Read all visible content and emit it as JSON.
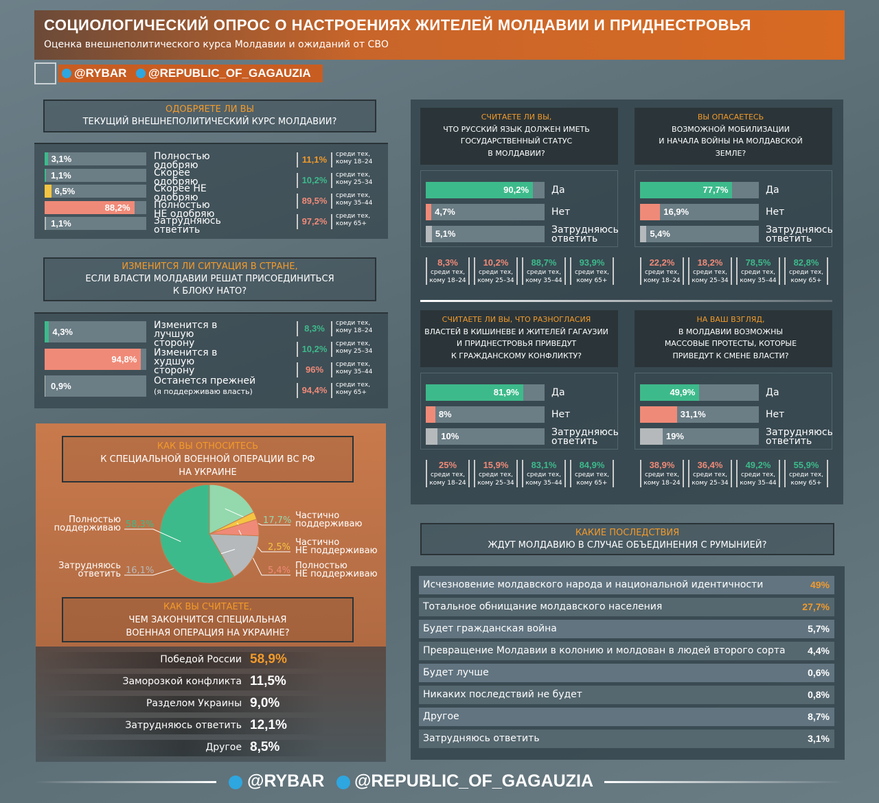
{
  "header": {
    "title": "СОЦИОЛОГИЧЕСКИЙ ОПРОС О НАСТРОЕНИЯХ ЖИТЕЛЕЙ МОЛДАВИИ И ПРИДНЕСТРОВЬЯ",
    "subtitle": "Оценка внешнеполитического курса Молдавии и ожиданий от СВО"
  },
  "handles": [
    "@RYBAR",
    "@REPUBLIC_OF_GAGAUZIA"
  ],
  "q1": {
    "title": [
      "ОДОБРЯЕТЕ ЛИ ВЫ",
      "ТЕКУЩИЙ ВНЕШНЕПОЛИТИЧЕСКИЙ КУРС МОЛДАВИИ?"
    ],
    "options": [
      {
        "label": "Полностью одобряю",
        "value": 3.1,
        "value_label": "3,1%",
        "color": "#3dba8b"
      },
      {
        "label": "Скорее одобряю",
        "value": 1.1,
        "value_label": "1,1%",
        "color": "#3dba8b"
      },
      {
        "label": "Скорее НЕ одобряю",
        "value": 6.5,
        "value_label": "6,5%",
        "color": "#f5c542"
      },
      {
        "label": "Полностью НЕ одобряю",
        "value": 88.2,
        "value_label": "88,2%",
        "color": "#f08a78"
      },
      {
        "label": "Затрудняюсь ответить",
        "value": 1.1,
        "value_label": "1,1%",
        "color": "#b5b9bb"
      }
    ],
    "ages": [
      {
        "value": "11,1%",
        "color": "#f39a2a",
        "note": [
          "среди тех,",
          "кому 18–24"
        ]
      },
      {
        "value": "10,2%",
        "color": "#3dba8b",
        "note": [
          "среди тех,",
          "кому 25–34"
        ]
      },
      {
        "value": "89,5%",
        "color": "#f08a78",
        "note": [
          "среди тех,",
          "кому 35–44"
        ]
      },
      {
        "value": "97,2%",
        "color": "#f08a78",
        "note": [
          "среди тех,",
          "кому 65+"
        ]
      }
    ]
  },
  "q2": {
    "title": [
      "ИЗМЕНИТСЯ ЛИ СИТУАЦИЯ В СТРАНЕ,",
      "ЕСЛИ ВЛАСТИ МОЛДАВИИ РЕШАТ ПРИСОЕДИНИТЬСЯ",
      "К БЛОКУ НАТО?"
    ],
    "options": [
      {
        "label": "Изменится в лучшую сторону",
        "value": 4.3,
        "value_label": "4,3%",
        "color": "#3dba8b"
      },
      {
        "label": "Изменится в худшую сторону",
        "value": 94.8,
        "value_label": "94,8%",
        "color": "#f08a78"
      },
      {
        "label": "Останется прежней",
        "sublabel": "(я поддерживаю власть)",
        "value": 0.9,
        "value_label": "0,9%",
        "color": "#b5b9bb"
      }
    ],
    "ages": [
      {
        "value": "8,3%",
        "color": "#3dba8b",
        "note": [
          "среди тех,",
          "кому 18–24"
        ]
      },
      {
        "value": "10,2%",
        "color": "#3dba8b",
        "note": [
          "среди тех,",
          "кому 25–34"
        ]
      },
      {
        "value": "96%",
        "color": "#f08a78",
        "note": [
          "среди тех,",
          "кому 35–44"
        ]
      },
      {
        "value": "94,4%",
        "color": "#f08a78",
        "note": [
          "среди тех,",
          "кому 65+"
        ]
      }
    ]
  },
  "q3": {
    "title": [
      "КАК ВЫ ОТНОСИТЕСЬ",
      "К СПЕЦИАЛЬНОЙ ВОЕННОЙ ОПЕРАЦИИ ВС РФ",
      "НА УКРАИНЕ"
    ],
    "slices": [
      {
        "label": [
          "Частично",
          "поддерживаю"
        ],
        "value": 17.7,
        "value_label": "17,7%",
        "color": "#93d9ad"
      },
      {
        "label": [
          "Частично",
          "НЕ поддерживаю"
        ],
        "value": 2.5,
        "value_label": "2,5%",
        "color": "#f5c542"
      },
      {
        "label": [
          "Полностью",
          "НЕ поддерживаю"
        ],
        "value": 5.4,
        "value_label": "5,4%",
        "color": "#f08a78"
      },
      {
        "label": [
          "Затрудняюсь",
          "ответить"
        ],
        "value": 16.1,
        "value_label": "16,1%",
        "color": "#b5b9bb"
      },
      {
        "label": [
          "Полностью",
          "поддерживаю"
        ],
        "value": 58.3,
        "value_label": "58,3%",
        "color": "#3dba8b"
      }
    ]
  },
  "q4": {
    "title": [
      "КАК ВЫ СЧИТАЕТЕ,",
      "ЧЕМ ЗАКОНЧИТСЯ СПЕЦИАЛЬНАЯ",
      "ВОЕННАЯ ОПЕРАЦИЯ НА УКРАИНЕ?"
    ],
    "answers": [
      {
        "label": "Победой России",
        "value": "58,9%",
        "color": "#f39a2a"
      },
      {
        "label": "Заморозкой конфликта",
        "value": "11,5%",
        "color": "#ffffff"
      },
      {
        "label": "Разделом Украины",
        "value": "9,0%",
        "color": "#ffffff"
      },
      {
        "label": "Затрудняюсь ответить",
        "value": "12,1%",
        "color": "#ffffff"
      },
      {
        "label": "Другое",
        "value": "8,5%",
        "color": "#ffffff"
      }
    ]
  },
  "quads": [
    {
      "title": [
        "СЧИТАЕТЕ ЛИ ВЫ,",
        "ЧТО РУССКИЙ ЯЗЫК ДОЛЖЕН ИМЕТЬ",
        "ГОСУДАРСТВЕННЫЙ СТАТУС",
        "В МОЛДАВИИ?"
      ],
      "options": [
        {
          "label": "Да",
          "value": 90.2,
          "value_label": "90,2%",
          "color": "#3dba8b"
        },
        {
          "label": "Нет",
          "value": 4.7,
          "value_label": "4,7%",
          "color": "#f08a78"
        },
        {
          "label": "Затрудняюсь ответить",
          "value": 5.1,
          "value_label": "5,1%",
          "color": "#b5b9bb"
        }
      ],
      "ages": [
        {
          "value": "8,3%",
          "color": "#f08a78",
          "note": [
            "среди тех,",
            "кому 18–24"
          ]
        },
        {
          "value": "10,2%",
          "color": "#f08a78",
          "note": [
            "среди тех,",
            "кому 25–34"
          ]
        },
        {
          "value": "88,7%",
          "color": "#3dba8b",
          "note": [
            "среди тех,",
            "кому 35–44"
          ]
        },
        {
          "value": "93,9%",
          "color": "#3dba8b",
          "note": [
            "среди тех,",
            "кому 65+"
          ]
        }
      ]
    },
    {
      "title": [
        "ВЫ ОПАСАЕТЕСЬ",
        "ВОЗМОЖНОЙ МОБИЛИЗАЦИИ",
        "И НАЧАЛА ВОЙНЫ НА МОЛДАВСКОЙ",
        "ЗЕМЛЕ?"
      ],
      "options": [
        {
          "label": "Да",
          "value": 77.7,
          "value_label": "77,7%",
          "color": "#3dba8b"
        },
        {
          "label": "Нет",
          "value": 16.9,
          "value_label": "16,9%",
          "color": "#f08a78"
        },
        {
          "label": "Затрудняюсь ответить",
          "value": 5.4,
          "value_label": "5,4%",
          "color": "#b5b9bb"
        }
      ],
      "ages": [
        {
          "value": "22,2%",
          "color": "#f08a78",
          "note": [
            "среди тех,",
            "кому 18–24"
          ]
        },
        {
          "value": "18,2%",
          "color": "#f08a78",
          "note": [
            "среди тех,",
            "кому 25–34"
          ]
        },
        {
          "value": "78,5%",
          "color": "#3dba8b",
          "note": [
            "среди тех,",
            "кому 35–44"
          ]
        },
        {
          "value": "82,8%",
          "color": "#3dba8b",
          "note": [
            "среди тех,",
            "кому 65+"
          ]
        }
      ]
    },
    {
      "title": [
        "СЧИТАЕТЕ ЛИ ВЫ, ЧТО РАЗНОГЛАСИЯ",
        "ВЛАСТЕЙ В КИШИНЕВЕ И ЖИТЕЛЕЙ ГАГАУЗИИ",
        "И ПРИДНЕСТРОВЬЯ ПРИВЕДУТ",
        "К ГРАЖДАНСКОМУ КОНФЛИКТУ?"
      ],
      "options": [
        {
          "label": "Да",
          "value": 81.9,
          "value_label": "81,9%",
          "color": "#3dba8b"
        },
        {
          "label": "Нет",
          "value": 8,
          "value_label": "8%",
          "color": "#f08a78"
        },
        {
          "label": "Затрудняюсь ответить",
          "value": 10,
          "value_label": "10%",
          "color": "#b5b9bb"
        }
      ],
      "ages": [
        {
          "value": "25%",
          "color": "#f08a78",
          "note": [
            "среди тех,",
            "кому 18–24"
          ]
        },
        {
          "value": "15,9%",
          "color": "#f08a78",
          "note": [
            "среди тех,",
            "кому 25–34"
          ]
        },
        {
          "value": "83,1%",
          "color": "#3dba8b",
          "note": [
            "среди тех,",
            "кому 35–44"
          ]
        },
        {
          "value": "84,9%",
          "color": "#3dba8b",
          "note": [
            "среди тех,",
            "кому 65+"
          ]
        }
      ]
    },
    {
      "title": [
        "НА ВАШ ВЗГЛЯД,",
        "В МОЛДАВИИ ВОЗМОЖНЫ",
        "МАССОВЫЕ ПРОТЕСТЫ, КОТОРЫЕ",
        "ПРИВЕДУТ К СМЕНЕ ВЛАСТИ?"
      ],
      "options": [
        {
          "label": "Да",
          "value": 49.9,
          "value_label": "49,9%",
          "color": "#3dba8b"
        },
        {
          "label": "Нет",
          "value": 31.1,
          "value_label": "31,1%",
          "color": "#f08a78"
        },
        {
          "label": "Затрудняюсь ответить",
          "value": 19,
          "value_label": "19%",
          "color": "#b5b9bb"
        }
      ],
      "ages": [
        {
          "value": "38,9%",
          "color": "#f08a78",
          "note": [
            "среди тех,",
            "кому 18–24"
          ]
        },
        {
          "value": "36,4%",
          "color": "#f08a78",
          "note": [
            "среди тех,",
            "кому 25–34"
          ]
        },
        {
          "value": "49,2%",
          "color": "#3dba8b",
          "note": [
            "среди тех,",
            "кому 35–44"
          ]
        },
        {
          "value": "55,9%",
          "color": "#3dba8b",
          "note": [
            "среди тех,",
            "кому 65+"
          ]
        }
      ]
    }
  ],
  "q5": {
    "title": [
      "КАКИЕ ПОСЛЕДСТВИЯ",
      "ЖДУТ МОЛДАВИЮ В СЛУЧАЕ ОБЪЕДИНЕНИЯ С РУМЫНИЕЙ?"
    ],
    "rows": [
      {
        "label": "Исчезновение молдавского народа и национальной идентичности",
        "value": "49%",
        "color": "#f39a2a"
      },
      {
        "label": "Тотальное обнищание молдавского населения",
        "value": "27,7%",
        "color": "#f39a2a"
      },
      {
        "label": "Будет гражданская война",
        "value": "5,7%",
        "color": "#ffffff"
      },
      {
        "label": "Превращение Молдавии в колонию и молдован в людей второго сорта",
        "value": "4,4%",
        "color": "#ffffff"
      },
      {
        "label": "Будет лучше",
        "value": "0,6%",
        "color": "#ffffff"
      },
      {
        "label": "Никаких последствий не будет",
        "value": "0,8%",
        "color": "#ffffff"
      },
      {
        "label": "Другое",
        "value": "8,7%",
        "color": "#ffffff"
      },
      {
        "label": "Затрудняюсь ответить",
        "value": "3,1%",
        "color": "#ffffff"
      }
    ]
  }
}
